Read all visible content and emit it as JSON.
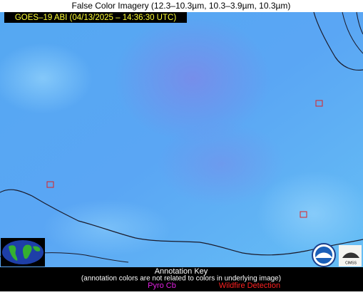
{
  "header": {
    "title": "False Color Imagery (12.3–10.3µm, 10.3–3.9µm, 10.3µm)"
  },
  "image": {
    "timestamp": "GOES–19 ABI (04/13/2025 – 14:36:30 UTC)"
  },
  "legend": {
    "title": "Annotation Key",
    "note": "(annotation colors are not related to colors in underlying image)",
    "items": [
      {
        "label": "Pyro Cb"
      },
      {
        "label": "Wildfire Detection"
      }
    ]
  },
  "logos": {
    "cimss": "CIMSS"
  }
}
